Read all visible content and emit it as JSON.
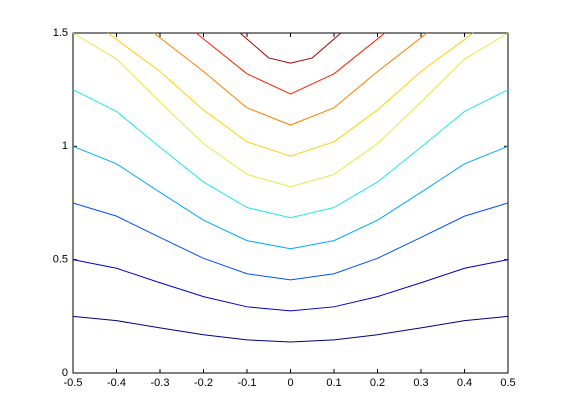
{
  "chart_data": {
    "type": "line",
    "xlim": [
      -0.5,
      0.5
    ],
    "ylim": [
      0,
      1.5
    ],
    "xticks": [
      -0.5,
      -0.4,
      -0.3,
      -0.2,
      -0.1,
      0,
      0.1,
      0.2,
      0.3,
      0.4,
      0.5
    ],
    "yticks": [
      0,
      0.5,
      1,
      1.5
    ],
    "series": [
      {
        "color": "#000080",
        "x": [
          -0.5,
          -0.4,
          -0.3,
          -0.2,
          -0.1,
          0,
          0.1,
          0.2,
          0.3,
          0.4,
          0.5
        ],
        "values": [
          0.25,
          0.231,
          0.199,
          0.169,
          0.146,
          0.137,
          0.146,
          0.169,
          0.199,
          0.231,
          0.25
        ]
      },
      {
        "color": "#0000c8",
        "x": [
          -0.5,
          -0.4,
          -0.3,
          -0.2,
          -0.1,
          0,
          0.1,
          0.2,
          0.3,
          0.4,
          0.5
        ],
        "values": [
          0.5,
          0.462,
          0.398,
          0.337,
          0.292,
          0.274,
          0.292,
          0.337,
          0.398,
          0.462,
          0.5
        ]
      },
      {
        "color": "#0050ff",
        "x": [
          -0.5,
          -0.4,
          -0.3,
          -0.2,
          -0.1,
          0,
          0.1,
          0.2,
          0.3,
          0.4,
          0.5
        ],
        "values": [
          0.75,
          0.692,
          0.598,
          0.506,
          0.438,
          0.411,
          0.438,
          0.506,
          0.598,
          0.692,
          0.75
        ]
      },
      {
        "color": "#00a8ff",
        "x": [
          -0.5,
          -0.4,
          -0.3,
          -0.2,
          -0.1,
          0,
          0.1,
          0.2,
          0.3,
          0.4,
          0.5
        ],
        "values": [
          1.0,
          0.923,
          0.797,
          0.674,
          0.584,
          0.548,
          0.584,
          0.674,
          0.797,
          0.923,
          1.0
        ]
      },
      {
        "color": "#20e8e8",
        "x": [
          -0.5,
          -0.4,
          -0.3,
          -0.2,
          -0.1,
          0,
          0.1,
          0.2,
          0.3,
          0.4,
          0.5
        ],
        "values": [
          1.25,
          1.154,
          0.996,
          0.843,
          0.73,
          0.685,
          0.73,
          0.843,
          0.996,
          1.154,
          1.25
        ]
      },
      {
        "color": "#d8f040",
        "x": [
          -0.5,
          -0.4,
          -0.3,
          -0.2,
          -0.1,
          0,
          0.1,
          0.2,
          0.3,
          0.4,
          0.5
        ],
        "values": [
          1.5,
          1.385,
          1.195,
          1.012,
          0.876,
          0.822,
          0.876,
          1.012,
          1.195,
          1.385,
          1.5
        ]
      },
      {
        "color": "#ffd000",
        "x": [
          -0.42,
          -0.3,
          -0.2,
          -0.1,
          0,
          0.1,
          0.2,
          0.3,
          0.42
        ],
        "values": [
          1.5,
          1.33,
          1.16,
          1.02,
          0.957,
          1.02,
          1.16,
          1.33,
          1.5
        ]
      },
      {
        "color": "#ff8000",
        "x": [
          -0.314,
          -0.2,
          -0.1,
          0,
          0.1,
          0.2,
          0.314
        ],
        "values": [
          1.5,
          1.33,
          1.17,
          1.094,
          1.17,
          1.33,
          1.5
        ]
      },
      {
        "color": "#ff2000",
        "x": [
          -0.217,
          -0.1,
          0,
          0.1,
          0.217
        ],
        "values": [
          1.5,
          1.32,
          1.231,
          1.32,
          1.5
        ]
      },
      {
        "color": "#a00000",
        "x": [
          -0.116,
          -0.05,
          0,
          0.05,
          0.116
        ],
        "values": [
          1.5,
          1.39,
          1.367,
          1.39,
          1.5
        ]
      }
    ]
  }
}
